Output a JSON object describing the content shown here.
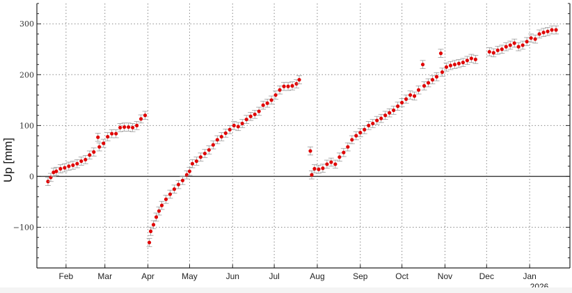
{
  "chart_data": {
    "type": "scatter",
    "title": "",
    "xlabel": "",
    "ylabel": "Up [mm]",
    "xlim": [
      "2025-01-11",
      "2026-01-30"
    ],
    "ylim": [
      -180,
      340
    ],
    "yticks": [
      -100,
      0,
      100,
      200,
      300
    ],
    "ytick_labels": [
      "−100",
      "0",
      "100",
      "200",
      "300"
    ],
    "xticks": [
      {
        "date": "2025-02-01",
        "label": "Feb"
      },
      {
        "date": "2025-03-01",
        "label": "Mar"
      },
      {
        "date": "2025-04-01",
        "label": "Apr"
      },
      {
        "date": "2025-05-01",
        "label": "May"
      },
      {
        "date": "2025-06-01",
        "label": "Jun"
      },
      {
        "date": "2025-07-01",
        "label": "Jul"
      },
      {
        "date": "2025-08-01",
        "label": "Aug"
      },
      {
        "date": "2025-09-01",
        "label": "Sep"
      },
      {
        "date": "2025-10-01",
        "label": "Oct"
      },
      {
        "date": "2025-11-01",
        "label": "Nov"
      },
      {
        "date": "2025-12-01",
        "label": "Dec"
      },
      {
        "date": "2026-01-01",
        "label": "Jan"
      }
    ],
    "year_label": "2026",
    "grid": true,
    "zero_line": true,
    "marker_color": "#e00000",
    "errorbar_color": "#999999",
    "error_mm": 8,
    "points": [
      [
        "2025-01-19",
        -10
      ],
      [
        "2025-01-21",
        -2
      ],
      [
        "2025-01-23",
        8
      ],
      [
        "2025-01-25",
        10
      ],
      [
        "2025-01-28",
        15
      ],
      [
        "2025-01-31",
        17
      ],
      [
        "2025-02-03",
        20
      ],
      [
        "2025-02-06",
        22
      ],
      [
        "2025-02-09",
        25
      ],
      [
        "2025-02-12",
        30
      ],
      [
        "2025-02-15",
        33
      ],
      [
        "2025-02-18",
        42
      ],
      [
        "2025-02-21",
        48
      ],
      [
        "2025-02-24",
        77
      ],
      [
        "2025-02-25",
        58
      ],
      [
        "2025-02-28",
        65
      ],
      [
        "2025-03-03",
        78
      ],
      [
        "2025-03-06",
        84
      ],
      [
        "2025-03-09",
        84
      ],
      [
        "2025-03-12",
        96
      ],
      [
        "2025-03-15",
        97
      ],
      [
        "2025-03-18",
        97
      ],
      [
        "2025-03-21",
        96
      ],
      [
        "2025-03-24",
        100
      ],
      [
        "2025-03-27",
        113
      ],
      [
        "2025-03-30",
        120
      ],
      [
        "2025-04-02",
        -130
      ],
      [
        "2025-04-03",
        -108
      ],
      [
        "2025-04-05",
        -95
      ],
      [
        "2025-04-07",
        -80
      ],
      [
        "2025-04-09",
        -68
      ],
      [
        "2025-04-11",
        -57
      ],
      [
        "2025-04-14",
        -45
      ],
      [
        "2025-04-17",
        -35
      ],
      [
        "2025-04-20",
        -25
      ],
      [
        "2025-04-23",
        -16
      ],
      [
        "2025-04-26",
        -8
      ],
      [
        "2025-04-29",
        3
      ],
      [
        "2025-05-01",
        10
      ],
      [
        "2025-05-03",
        25
      ],
      [
        "2025-05-06",
        30
      ],
      [
        "2025-05-09",
        38
      ],
      [
        "2025-05-12",
        45
      ],
      [
        "2025-05-15",
        52
      ],
      [
        "2025-05-18",
        62
      ],
      [
        "2025-05-21",
        72
      ],
      [
        "2025-05-24",
        78
      ],
      [
        "2025-05-27",
        85
      ],
      [
        "2025-05-30",
        92
      ],
      [
        "2025-06-02",
        100
      ],
      [
        "2025-06-05",
        98
      ],
      [
        "2025-06-08",
        104
      ],
      [
        "2025-06-11",
        112
      ],
      [
        "2025-06-14",
        118
      ],
      [
        "2025-06-17",
        122
      ],
      [
        "2025-06-20",
        128
      ],
      [
        "2025-06-23",
        140
      ],
      [
        "2025-06-26",
        144
      ],
      [
        "2025-06-29",
        150
      ],
      [
        "2025-07-02",
        160
      ],
      [
        "2025-07-05",
        170
      ],
      [
        "2025-07-08",
        177
      ],
      [
        "2025-07-11",
        177
      ],
      [
        "2025-07-14",
        178
      ],
      [
        "2025-07-17",
        182
      ],
      [
        "2025-07-19",
        190
      ],
      [
        "2025-07-27",
        50
      ],
      [
        "2025-07-28",
        3
      ],
      [
        "2025-07-30",
        15
      ],
      [
        "2025-08-02",
        14
      ],
      [
        "2025-08-05",
        16
      ],
      [
        "2025-08-08",
        24
      ],
      [
        "2025-08-11",
        28
      ],
      [
        "2025-08-14",
        24
      ],
      [
        "2025-08-17",
        38
      ],
      [
        "2025-08-20",
        47
      ],
      [
        "2025-08-23",
        58
      ],
      [
        "2025-08-26",
        72
      ],
      [
        "2025-08-29",
        80
      ],
      [
        "2025-09-01",
        86
      ],
      [
        "2025-09-04",
        92
      ],
      [
        "2025-09-07",
        100
      ],
      [
        "2025-09-10",
        104
      ],
      [
        "2025-09-13",
        110
      ],
      [
        "2025-09-16",
        114
      ],
      [
        "2025-09-19",
        120
      ],
      [
        "2025-09-22",
        125
      ],
      [
        "2025-09-25",
        130
      ],
      [
        "2025-09-28",
        138
      ],
      [
        "2025-10-01",
        145
      ],
      [
        "2025-10-04",
        152
      ],
      [
        "2025-10-07",
        160
      ],
      [
        "2025-10-10",
        158
      ],
      [
        "2025-10-13",
        170
      ],
      [
        "2025-10-16",
        220
      ],
      [
        "2025-10-17",
        178
      ],
      [
        "2025-10-20",
        184
      ],
      [
        "2025-10-23",
        190
      ],
      [
        "2025-10-26",
        196
      ],
      [
        "2025-10-29",
        242
      ],
      [
        "2025-10-30",
        205
      ],
      [
        "2025-11-02",
        215
      ],
      [
        "2025-11-05",
        218
      ],
      [
        "2025-11-08",
        220
      ],
      [
        "2025-11-11",
        222
      ],
      [
        "2025-11-14",
        224
      ],
      [
        "2025-11-17",
        228
      ],
      [
        "2025-11-20",
        232
      ],
      [
        "2025-11-23",
        230
      ],
      [
        "2025-12-03",
        245
      ],
      [
        "2025-12-06",
        243
      ],
      [
        "2025-12-09",
        248
      ],
      [
        "2025-12-12",
        250
      ],
      [
        "2025-12-15",
        255
      ],
      [
        "2025-12-18",
        258
      ],
      [
        "2025-12-21",
        262
      ],
      [
        "2025-12-24",
        255
      ],
      [
        "2025-12-27",
        258
      ],
      [
        "2025-12-30",
        265
      ],
      [
        "2026-01-02",
        272
      ],
      [
        "2026-01-05",
        270
      ],
      [
        "2026-01-08",
        280
      ],
      [
        "2026-01-11",
        283
      ],
      [
        "2026-01-14",
        285
      ],
      [
        "2026-01-17",
        288
      ],
      [
        "2026-01-20",
        288
      ]
    ]
  }
}
